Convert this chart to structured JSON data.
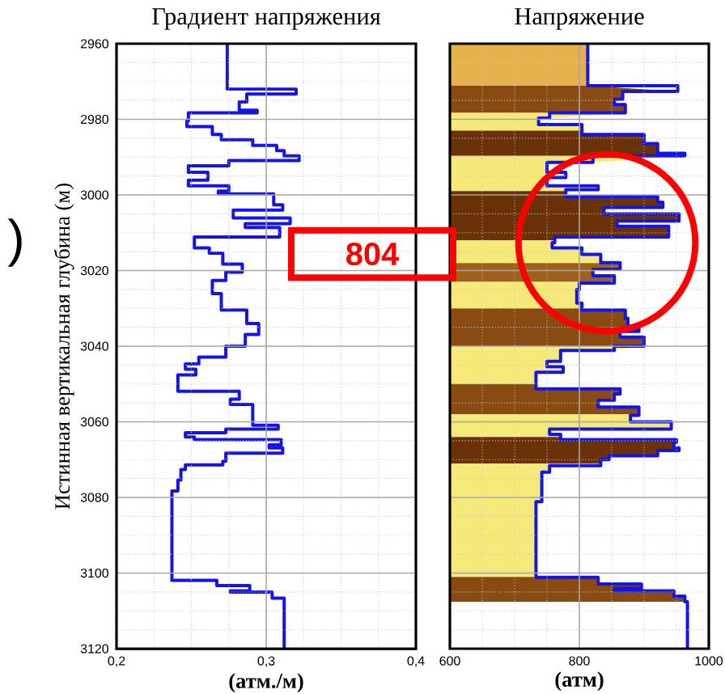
{
  "chart_data": [
    {
      "type": "line",
      "title": "Градиент напряжения",
      "xlabel": "(атм./м)",
      "ylabel": "Истинная вертикальная глубина (м)",
      "xlim": [
        0.2,
        0.4
      ],
      "ylim": [
        3120,
        2960
      ],
      "xticks": [
        {
          "value": 0.2,
          "label": "0,2"
        },
        {
          "value": 0.3,
          "label": "0,3"
        },
        {
          "value": 0.4,
          "label": "0,4"
        }
      ],
      "yticks": [
        2960,
        2980,
        3000,
        3020,
        3040,
        3060,
        3080,
        3100,
        3120
      ],
      "grid": true,
      "marker": "none",
      "line_style": "solid",
      "annotations": [
        ")"
      ],
      "series": [
        {
          "color": "#1414e6",
          "x": [
            0.274,
            0.274,
            0.32,
            0.32,
            0.287,
            0.287,
            0.282,
            0.282,
            0.294,
            0.294,
            0.248,
            0.248,
            0.247,
            0.247,
            0.264,
            0.264,
            0.27,
            0.27,
            0.291,
            0.291,
            0.307,
            0.307,
            0.312,
            0.312,
            0.322,
            0.322,
            0.275,
            0.275,
            0.248,
            0.248,
            0.261,
            0.261,
            0.248,
            0.248,
            0.275,
            0.275,
            0.268,
            0.268,
            0.305,
            0.305,
            0.311,
            0.311,
            0.278,
            0.278,
            0.316,
            0.316,
            0.286,
            0.286,
            0.309,
            0.309,
            0.252,
            0.252,
            0.262,
            0.262,
            0.271,
            0.271,
            0.284,
            0.284,
            0.273,
            0.273,
            0.264,
            0.264,
            0.27,
            0.27,
            0.287,
            0.287,
            0.295,
            0.295,
            0.286,
            0.286,
            0.273,
            0.273,
            0.255,
            0.255,
            0.246,
            0.246,
            0.253,
            0.253,
            0.241,
            0.241,
            0.282,
            0.282,
            0.276,
            0.276,
            0.291,
            0.291,
            0.308,
            0.308,
            0.273,
            0.273,
            0.246,
            0.246,
            0.252,
            0.252,
            0.31,
            0.31,
            0.302,
            0.302,
            0.311,
            0.311,
            0.273,
            0.273,
            0.271,
            0.271,
            0.246,
            0.246,
            0.243,
            0.243,
            0.241,
            0.241,
            0.237,
            0.237,
            0.267,
            0.267,
            0.289,
            0.289,
            0.276,
            0.276,
            0.304,
            0.304,
            0.312,
            0.312
          ],
          "values": [
            2960,
            2972,
            2972,
            2973.3,
            2973.3,
            2975.4,
            2975.4,
            2977.6,
            2977.6,
            2978.3,
            2978.3,
            2980.4,
            2980.4,
            2981.9,
            2981.9,
            2984,
            2984,
            2985.4,
            2985.4,
            2986.9,
            2986.9,
            2988.3,
            2988.3,
            2989.7,
            2989.7,
            2990.9,
            2990.9,
            2992.3,
            2992.3,
            2994,
            2994,
            2996.1,
            2996.1,
            2997.6,
            2997.6,
            2999,
            2999,
            2999.7,
            2999.7,
            3002.6,
            3002.6,
            3004,
            3004,
            3006.1,
            3006.1,
            3007.6,
            3007.6,
            3008.6,
            3008.6,
            3011.1,
            3011.1,
            3014,
            3014,
            3015.4,
            3015.4,
            3018.3,
            3018.3,
            3020.4,
            3020.4,
            3022.6,
            3022.6,
            3026.1,
            3026.1,
            3030.4,
            3030.4,
            3034,
            3034,
            3036.9,
            3036.9,
            3040,
            3040,
            3042.9,
            3042.9,
            3044.7,
            3044.7,
            3046.1,
            3046.1,
            3047.6,
            3047.6,
            3051.9,
            3051.9,
            3054,
            3054,
            3055.4,
            3055.4,
            3060.9,
            3060.9,
            3061.9,
            3061.9,
            3062.9,
            3062.9,
            3064,
            3064,
            3064.7,
            3064.7,
            3066.1,
            3066.1,
            3066.9,
            3066.9,
            3068.3,
            3068.3,
            3070.4,
            3070.4,
            3071.4,
            3071.4,
            3072.6,
            3072.6,
            3075.4,
            3075.4,
            3078.3,
            3078.3,
            3101.9,
            3101.9,
            3103.3,
            3103.3,
            3104.7,
            3104.7,
            3105,
            3105,
            3106.6,
            3106.6,
            3120
          ]
        }
      ]
    },
    {
      "type": "line",
      "title": "Напряжение",
      "xlabel": "(атм)",
      "xlim": [
        600,
        1000
      ],
      "ylim": [
        3120,
        2960
      ],
      "xticks": [
        600,
        800,
        1000
      ],
      "yticks": [
        2960,
        2980,
        3000,
        3020,
        3040,
        3060,
        3080,
        3100,
        3120
      ],
      "tick_labels": "x",
      "grid": true,
      "marker": "none",
      "line_style": "solid",
      "annotations": [
        "804"
      ],
      "series": [
        {
          "color": "#1414e6",
          "x": [
            813,
            813,
            952,
            952,
            867,
            867,
            854,
            854,
            871,
            871,
            754,
            754,
            737,
            737,
            804,
            804,
            900,
            900,
            921,
            921,
            963,
            963,
            821,
            821,
            750,
            750,
            779,
            779,
            750,
            750,
            829,
            829,
            779,
            779,
            921,
            921,
            929,
            929,
            838,
            838,
            954,
            954,
            858,
            858,
            938,
            938,
            762,
            762,
            758,
            758,
            804,
            804,
            833,
            833,
            863,
            863,
            821,
            821,
            854,
            854,
            800,
            800,
            796,
            796,
            804,
            804,
            871,
            871,
            875,
            875,
            892,
            892,
            863,
            863,
            900,
            900,
            854,
            854,
            771,
            771,
            750,
            750,
            775,
            775,
            733,
            733,
            863,
            863,
            854,
            854,
            829,
            829,
            892,
            892,
            879,
            879,
            942,
            942,
            754,
            754,
            771,
            771,
            950,
            950,
            946,
            946,
            954,
            954,
            921,
            921,
            846,
            846,
            833,
            833,
            754,
            754,
            742,
            742,
            733,
            733,
            829,
            829,
            896,
            896,
            854,
            854,
            946,
            946,
            963,
            963,
            967,
            967
          ],
          "values": [
            2960,
            2971.1,
            2971.1,
            2972.6,
            2972.6,
            2974.7,
            2974.7,
            2976.1,
            2976.1,
            2978.3,
            2978.3,
            2979.7,
            2979.7,
            2981.4,
            2981.4,
            2984,
            2984,
            2986.4,
            2986.4,
            2989,
            2989,
            2989.7,
            2989.7,
            2991.4,
            2991.4,
            2994,
            2994,
            2995.4,
            2995.4,
            2997.6,
            2997.6,
            2998.6,
            2998.6,
            3000.4,
            3000.4,
            3001.9,
            3001.9,
            3003.3,
            3003.3,
            3005,
            3005,
            3006.9,
            3006.9,
            3008.3,
            3008.3,
            3011.1,
            3011.1,
            3012.6,
            3012.6,
            3014,
            3014,
            3015.7,
            3015.7,
            3017.9,
            3017.9,
            3019.7,
            3019.7,
            3021.4,
            3021.4,
            3023.3,
            3023.3,
            3025,
            3025,
            3028.6,
            3028.6,
            3030.4,
            3030.4,
            3032.6,
            3032.6,
            3034.7,
            3034.7,
            3036.1,
            3036.1,
            3037.6,
            3037.6,
            3040,
            3040,
            3041.1,
            3041.1,
            3044,
            3044,
            3045.4,
            3045.4,
            3046.9,
            3046.9,
            3051.3,
            3051.3,
            3052.6,
            3052.6,
            3054.3,
            3054.3,
            3056.1,
            3056.1,
            3058.3,
            3058.3,
            3060,
            3060,
            3061.9,
            3061.9,
            3063.3,
            3063.3,
            3064.7,
            3064.7,
            3065.4,
            3065.4,
            3066.9,
            3066.9,
            3067.6,
            3067.6,
            3069,
            3069,
            3070,
            3070,
            3071.6,
            3071.6,
            3073.3,
            3073.3,
            3081.1,
            3081.1,
            3101.1,
            3101.1,
            3102.9,
            3102.9,
            3104,
            3104,
            3104.7,
            3104.7,
            3106.1,
            3106.1,
            3107.6,
            3107.6,
            3120
          ]
        }
      ]
    }
  ]
}
